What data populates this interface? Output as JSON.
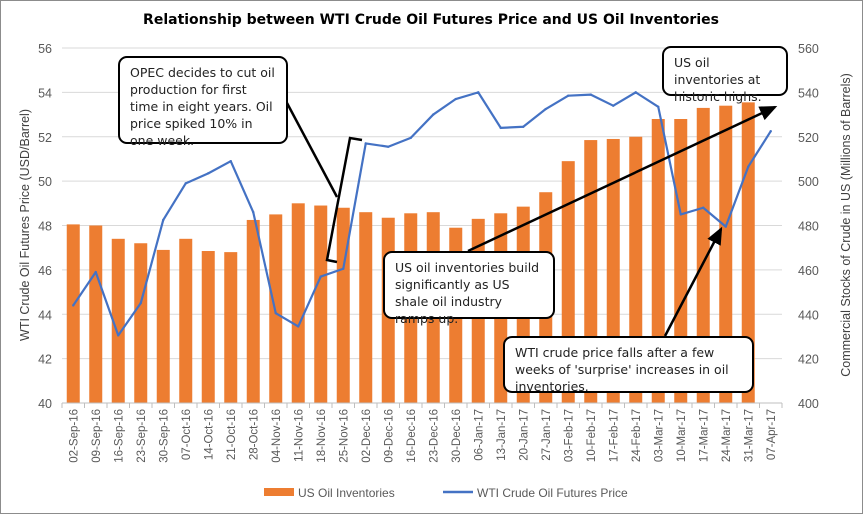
{
  "chart_data": {
    "type": "bar+line",
    "title": "Relationship between WTI Crude Oil Futures Price and US Oil Inventories",
    "ylabel_left": "WTI Crude Oil Futures Price (USD/Barrel)",
    "ylabel_right": "Commercial Stocks of Crude in US (Millions of  Barrels)",
    "ylim_left": [
      40,
      56
    ],
    "yticks_left": [
      40,
      42,
      44,
      46,
      48,
      50,
      52,
      54,
      56
    ],
    "ylim_right": [
      400,
      560
    ],
    "yticks_right": [
      400,
      420,
      440,
      460,
      480,
      500,
      520,
      540,
      560
    ],
    "grid": true,
    "legend": "bottom",
    "categories": [
      "02-Sep-16",
      "09-Sep-16",
      "16-Sep-16",
      "23-Sep-16",
      "30-Sep-16",
      "07-Oct-16",
      "14-Oct-16",
      "21-Oct-16",
      "28-Oct-16",
      "04-Nov-16",
      "11-Nov-16",
      "18-Nov-16",
      "25-Nov-16",
      "02-Dec-16",
      "09-Dec-16",
      "16-Dec-16",
      "23-Dec-16",
      "30-Dec-16",
      "06-Jan-17",
      "13-Jan-17",
      "20-Jan-17",
      "27-Jan-17",
      "03-Feb-17",
      "10-Feb-17",
      "17-Feb-17",
      "24-Feb-17",
      "03-Mar-17",
      "10-Mar-17",
      "17-Mar-17",
      "24-Mar-17",
      "31-Mar-17",
      "07-Apr-17"
    ],
    "series": [
      {
        "name": "US Oil Inventories",
        "type": "bar",
        "axis": "right",
        "color": "#ED7D31",
        "values": [
          480.5,
          480,
          474,
          472,
          469,
          474,
          468.5,
          468,
          482.5,
          485,
          490,
          489,
          488,
          486,
          483.5,
          485.5,
          486,
          479,
          483,
          485.5,
          488.5,
          495,
          509,
          518.5,
          519,
          520,
          528,
          528,
          533,
          534,
          535.5,
          null
        ]
      },
      {
        "name": "WTI Crude Oil Futures Price",
        "type": "line",
        "axis": "left",
        "color": "#4472C4",
        "values": [
          44.4,
          45.9,
          43.05,
          44.5,
          48.25,
          49.9,
          50.35,
          50.9,
          48.6,
          44.05,
          43.45,
          45.7,
          46.05,
          51.7,
          51.55,
          51.95,
          53.0,
          53.7,
          54.0,
          52.4,
          52.45,
          53.25,
          53.85,
          53.9,
          53.4,
          54.0,
          53.35,
          48.5,
          48.8,
          47.95,
          50.65,
          52.25
        ]
      }
    ],
    "annotations": [
      "OPEC decides to cut oil production for first time in eight years. Oil price spiked 10% in one week.",
      "US oil inventories build significantly as US shale oil industry ramps up.",
      "US oil inventories at historic highs.",
      "WTI crude price falls after a few weeks of 'surprise' increases in oil inventories."
    ]
  }
}
